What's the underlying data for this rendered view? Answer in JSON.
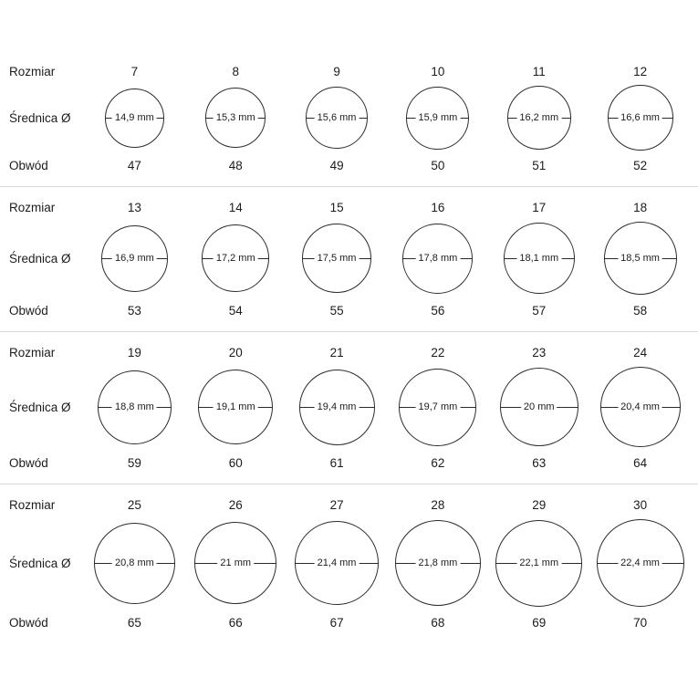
{
  "labels": {
    "size": "Rozmiar",
    "diameter": "Średnica Ø",
    "circumference": "Obwód"
  },
  "rows": [
    {
      "cells": [
        {
          "size": "7",
          "diameter": "14,9 mm",
          "mm": 14.9,
          "circumference": "47"
        },
        {
          "size": "8",
          "diameter": "15,3 mm",
          "mm": 15.3,
          "circumference": "48"
        },
        {
          "size": "9",
          "diameter": "15,6 mm",
          "mm": 15.6,
          "circumference": "49"
        },
        {
          "size": "10",
          "diameter": "15,9 mm",
          "mm": 15.9,
          "circumference": "50"
        },
        {
          "size": "11",
          "diameter": "16,2 mm",
          "mm": 16.2,
          "circumference": "51"
        },
        {
          "size": "12",
          "diameter": "16,6 mm",
          "mm": 16.6,
          "circumference": "52"
        }
      ]
    },
    {
      "cells": [
        {
          "size": "13",
          "diameter": "16,9 mm",
          "mm": 16.9,
          "circumference": "53"
        },
        {
          "size": "14",
          "diameter": "17,2 mm",
          "mm": 17.2,
          "circumference": "54"
        },
        {
          "size": "15",
          "diameter": "17,5 mm",
          "mm": 17.5,
          "circumference": "55"
        },
        {
          "size": "16",
          "diameter": "17,8 mm",
          "mm": 17.8,
          "circumference": "56"
        },
        {
          "size": "17",
          "diameter": "18,1 mm",
          "mm": 18.1,
          "circumference": "57"
        },
        {
          "size": "18",
          "diameter": "18,5 mm",
          "mm": 18.5,
          "circumference": "58"
        }
      ]
    },
    {
      "cells": [
        {
          "size": "19",
          "diameter": "18,8 mm",
          "mm": 18.8,
          "circumference": "59"
        },
        {
          "size": "20",
          "diameter": "19,1 mm",
          "mm": 19.1,
          "circumference": "60"
        },
        {
          "size": "21",
          "diameter": "19,4 mm",
          "mm": 19.4,
          "circumference": "61"
        },
        {
          "size": "22",
          "diameter": "19,7 mm",
          "mm": 19.7,
          "circumference": "62"
        },
        {
          "size": "23",
          "diameter": "20 mm",
          "mm": 20,
          "circumference": "63"
        },
        {
          "size": "24",
          "diameter": "20,4 mm",
          "mm": 20.4,
          "circumference": "64"
        }
      ]
    },
    {
      "cells": [
        {
          "size": "25",
          "diameter": "20,8 mm",
          "mm": 20.8,
          "circumference": "65"
        },
        {
          "size": "26",
          "diameter": "21 mm",
          "mm": 21,
          "circumference": "66"
        },
        {
          "size": "27",
          "diameter": "21,4 mm",
          "mm": 21.4,
          "circumference": "67"
        },
        {
          "size": "28",
          "diameter": "21,8 mm",
          "mm": 21.8,
          "circumference": "68"
        },
        {
          "size": "29",
          "diameter": "22,1 mm",
          "mm": 22.1,
          "circumference": "69"
        },
        {
          "size": "30",
          "diameter": "22,4 mm",
          "mm": 22.4,
          "circumference": "70"
        }
      ]
    }
  ]
}
